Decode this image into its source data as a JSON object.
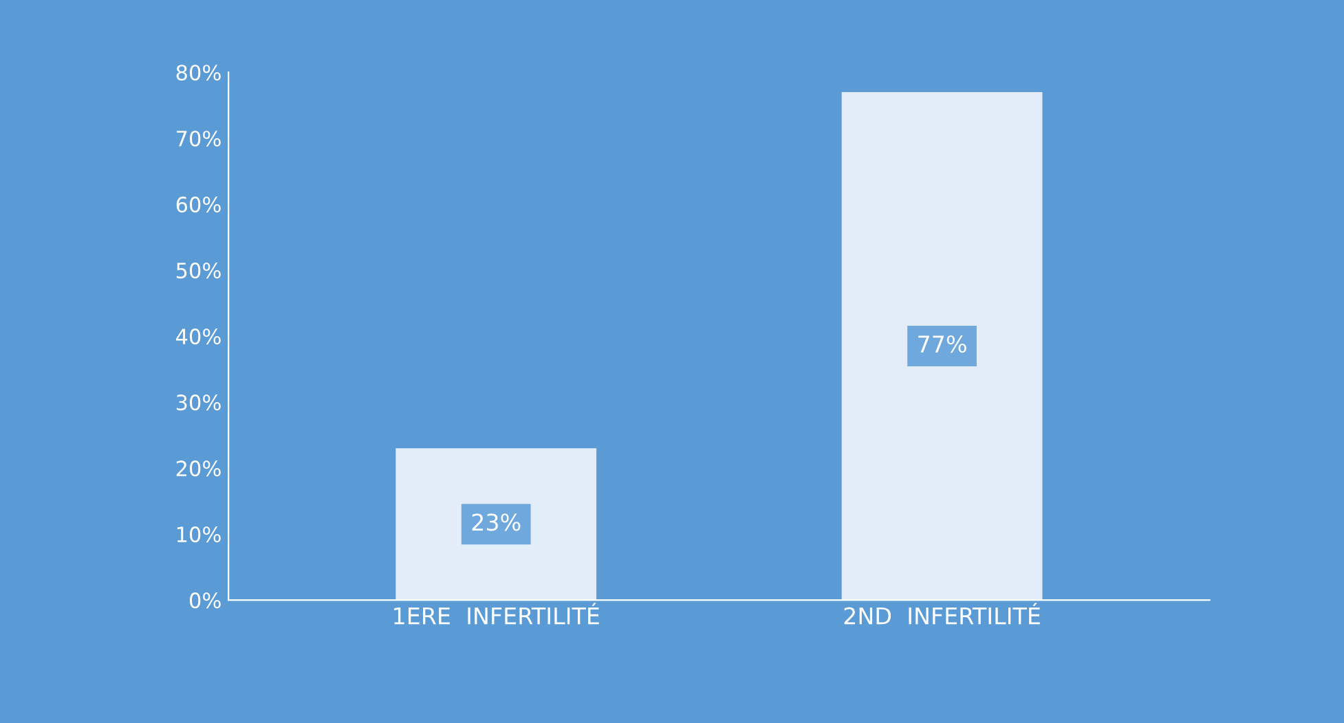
{
  "chart_data": {
    "type": "bar",
    "categories": [
      "1ERE  INFERTILITÉ",
      "2ND  INFERTILITÉ"
    ],
    "values": [
      23,
      77
    ],
    "value_labels": [
      "23%",
      "77%"
    ],
    "colors": [
      "#e3edf9",
      "#e3edf9"
    ],
    "ylim": [
      0,
      80
    ],
    "yticks": [
      {
        "value": 0,
        "label": "0%"
      },
      {
        "value": 10,
        "label": "10%"
      },
      {
        "value": 20,
        "label": "20%"
      },
      {
        "value": 30,
        "label": "30%"
      },
      {
        "value": 40,
        "label": "40%"
      },
      {
        "value": 50,
        "label": "50%"
      },
      {
        "value": 60,
        "label": "60%"
      },
      {
        "value": 70,
        "label": "70%"
      },
      {
        "value": 80,
        "label": "80%"
      }
    ],
    "grid": false
  }
}
